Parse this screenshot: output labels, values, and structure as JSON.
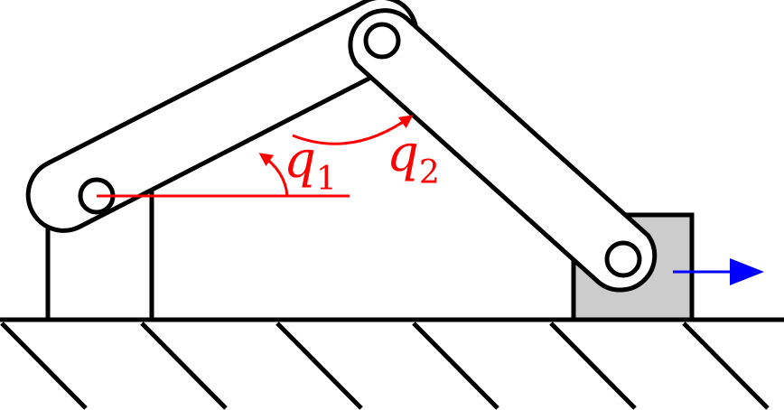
{
  "labels": {
    "q1_symbol": "q",
    "q1_subscript": "1",
    "q2_symbol": "q",
    "q2_subscript": "2"
  },
  "colors": {
    "line": "#000000",
    "angle_annotation": "#ff0000",
    "motion_arrow": "#0000ff",
    "slider_fill": "#cccccc",
    "background": "#ffffff"
  },
  "parts": {
    "ground_hatch_count": 6
  }
}
